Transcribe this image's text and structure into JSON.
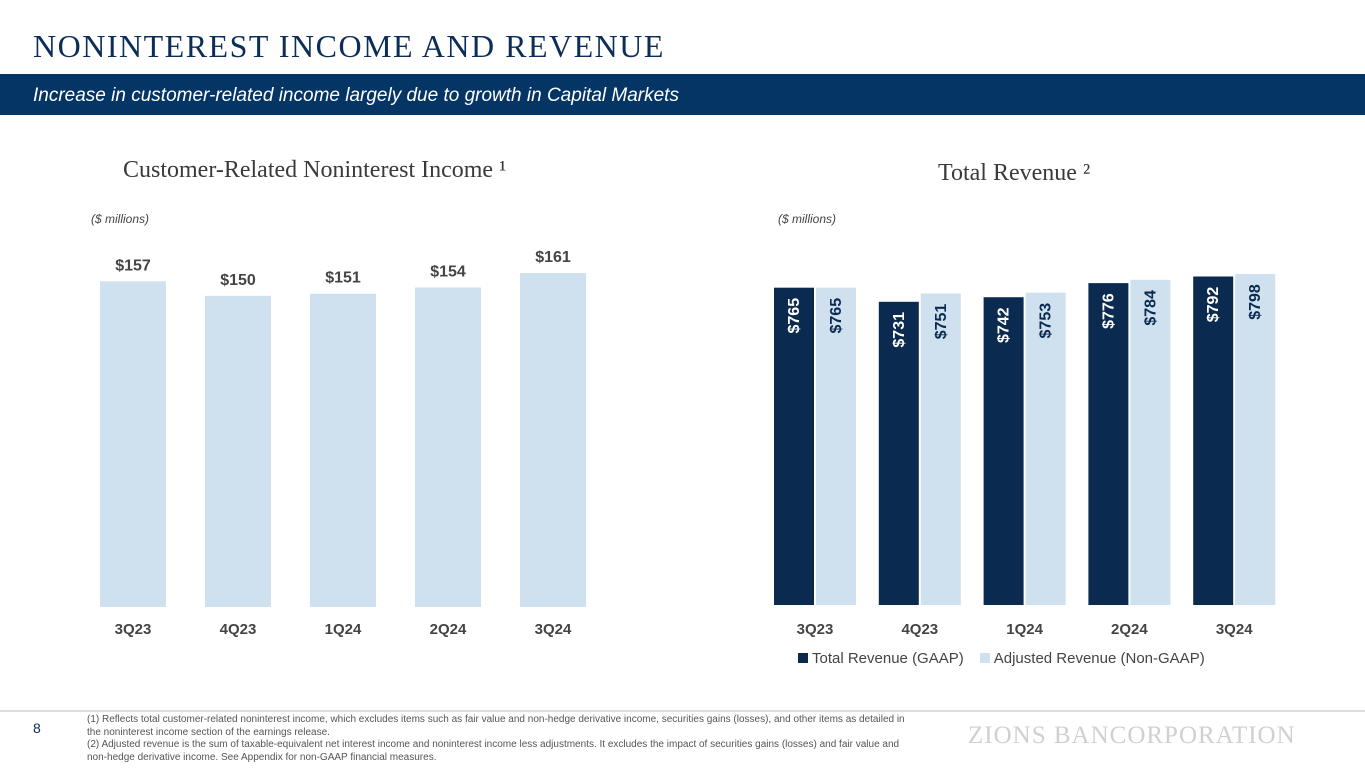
{
  "header": {
    "title": "NONINTEREST INCOME AND REVENUE",
    "subtitle": "Increase in customer-related income largely due to growth in Capital Markets"
  },
  "chart_data": [
    {
      "type": "bar",
      "title": "Customer-Related Noninterest Income ¹",
      "units": "($ millions)",
      "categories": [
        "3Q23",
        "4Q23",
        "1Q24",
        "2Q24",
        "3Q24"
      ],
      "values": [
        157,
        150,
        151,
        154,
        161
      ],
      "labels": [
        "$157",
        "$150",
        "$151",
        "$154",
        "$161"
      ],
      "ylim": [
        0,
        161
      ],
      "color": "#cfe0ee"
    },
    {
      "type": "bar",
      "title": "Total Revenue ²",
      "units": "($ millions)",
      "categories": [
        "3Q23",
        "4Q23",
        "1Q24",
        "2Q24",
        "3Q24"
      ],
      "series": [
        {
          "name": "Total Revenue (GAAP)",
          "values": [
            765,
            731,
            742,
            776,
            792
          ],
          "labels": [
            "$765",
            "$731",
            "$742",
            "$776",
            "$792"
          ],
          "color": "#0a2a4f"
        },
        {
          "name": "Adjusted Revenue (Non-GAAP)",
          "values": [
            765,
            751,
            753,
            784,
            798
          ],
          "labels": [
            "$765",
            "$751",
            "$753",
            "$784",
            "$798"
          ],
          "color": "#cfe0ee"
        }
      ],
      "ylim": [
        0,
        798
      ],
      "legend": "bottom"
    }
  ],
  "footer": {
    "page": "8",
    "notes": [
      "(1)    Reflects total customer-related noninterest income, which excludes items such as fair value and non-hedge derivative income, securities gains (losses), and other items as detailed in the noninterest income section of the earnings release.",
      "(2)    Adjusted revenue is the sum of taxable-equivalent net interest income and noninterest income less adjustments. It excludes the impact of securities gains (losses) and fair value and non-hedge derivative income. See Appendix for non-GAAP financial measures."
    ],
    "logo": "ZIONS BANCORPORATION"
  }
}
